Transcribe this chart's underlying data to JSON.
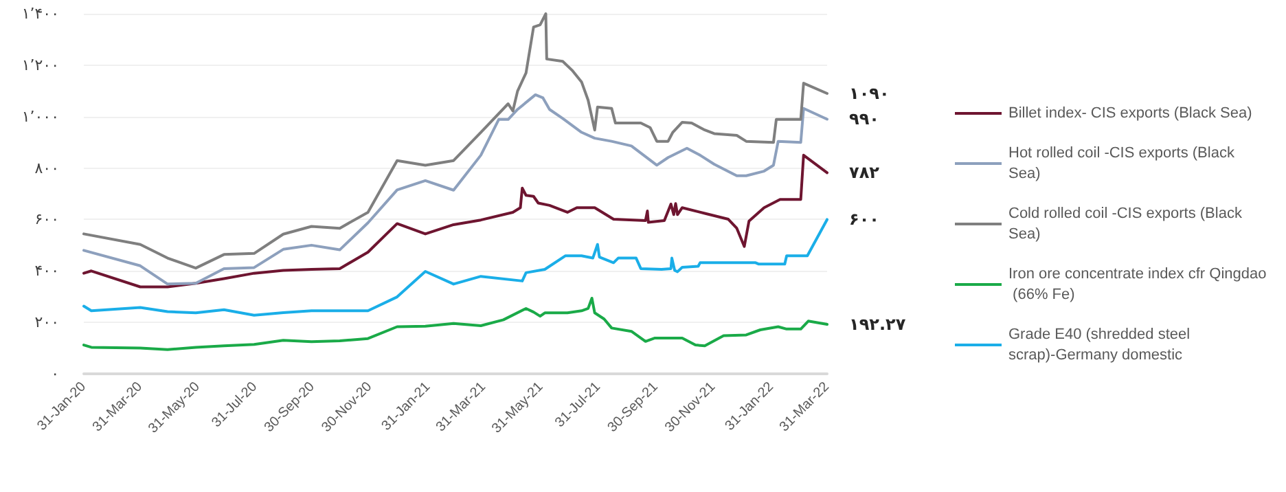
{
  "chart_data": {
    "type": "line",
    "ylim": [
      0,
      1400
    ],
    "yticks": [
      {
        "value": 0,
        "label": "۰"
      },
      {
        "value": 200,
        "label": "۲۰۰"
      },
      {
        "value": 400,
        "label": "۴۰۰"
      },
      {
        "value": 600,
        "label": "۶۰۰"
      },
      {
        "value": 800,
        "label": "۸۰۰"
      },
      {
        "value": 1000,
        "label": "۱٬۰۰۰"
      },
      {
        "value": 1200,
        "label": "۱٬۲۰۰"
      },
      {
        "value": 1400,
        "label": "۱٬۴۰۰"
      }
    ],
    "xlim": [
      "2020-01-31",
      "2022-03-31"
    ],
    "xticks": [
      {
        "value": "2020-01-31",
        "label": "31-Jan-20"
      },
      {
        "value": "2020-03-31",
        "label": "31-Mar-20"
      },
      {
        "value": "2020-05-31",
        "label": "31-May-20"
      },
      {
        "value": "2020-07-31",
        "label": "31-Jul-20"
      },
      {
        "value": "2020-09-30",
        "label": "30-Sep-20"
      },
      {
        "value": "2020-11-30",
        "label": "30-Nov-20"
      },
      {
        "value": "2021-01-31",
        "label": "31-Jan-21"
      },
      {
        "value": "2021-03-31",
        "label": "31-Mar-21"
      },
      {
        "value": "2021-05-31",
        "label": "31-May-21"
      },
      {
        "value": "2021-07-31",
        "label": "31-Jul-21"
      },
      {
        "value": "2021-09-30",
        "label": "30-Sep-21"
      },
      {
        "value": "2021-11-30",
        "label": "30-Nov-21"
      },
      {
        "value": "2022-01-31",
        "label": "31-Jan-22"
      },
      {
        "value": "2022-03-31",
        "label": "31-Mar-22"
      }
    ],
    "grid": "y",
    "legend": "right",
    "marker": "none",
    "line_style": "solid",
    "annotations": [
      {
        "text": "۱۰۹۰",
        "x": "2022-03-31",
        "y": 1090
      },
      {
        "text": "۹۹۰",
        "x": "2022-03-31",
        "y": 990
      },
      {
        "text": "۷۸۲",
        "x": "2022-03-31",
        "y": 782
      },
      {
        "text": "۶۰۰",
        "x": "2022-03-31",
        "y": 600
      },
      {
        "text": "۱۹۲.۲۷",
        "x": "2022-03-31",
        "y": 192.27
      }
    ],
    "series": [
      {
        "name": "Billet index- CIS exports (Black Sea)",
        "color": "#6e1530",
        "x": [
          "2020-01-31",
          "2020-02-08",
          "2020-03-31",
          "2020-04-29",
          "2020-05-29",
          "2020-06-28",
          "2020-07-30",
          "2020-08-30",
          "2020-09-29",
          "2020-10-29",
          "2020-11-28",
          "2020-12-29",
          "2021-01-28",
          "2021-02-27",
          "2021-03-28",
          "2021-05-01",
          "2021-05-09",
          "2021-05-11",
          "2021-05-15",
          "2021-05-23",
          "2021-05-28",
          "2021-06-09",
          "2021-06-28",
          "2021-07-08",
          "2021-07-27",
          "2021-08-16",
          "2021-09-19",
          "2021-09-21",
          "2021-09-22",
          "2021-10-09",
          "2021-10-16",
          "2021-10-19",
          "2021-10-21",
          "2021-10-23",
          "2021-10-28",
          "2021-11-21",
          "2021-12-16",
          "2021-12-25",
          "2022-01-02",
          "2022-01-07",
          "2022-01-23",
          "2022-02-09",
          "2022-03-03",
          "2022-03-06",
          "2022-03-31"
        ],
        "values": [
          391,
          400,
          338,
          338,
          352,
          370,
          391,
          402,
          406,
          409,
          473,
          584,
          544,
          580,
          598,
          628,
          646,
          722,
          694,
          690,
          664,
          655,
          628,
          646,
          646,
          601,
          596,
          633,
          589,
          596,
          660,
          619,
          662,
          619,
          646,
          624,
          601,
          566,
          495,
          594,
          646,
          678,
          678,
          850,
          782
        ]
      },
      {
        "name": "Hot rolled coil -CIS exports (Black Sea)",
        "color": "#8da0bd",
        "x": [
          "2020-01-31",
          "2020-03-31",
          "2020-04-29",
          "2020-05-29",
          "2020-06-28",
          "2020-07-30",
          "2020-08-30",
          "2020-09-29",
          "2020-10-29",
          "2020-11-28",
          "2020-12-29",
          "2021-01-28",
          "2021-02-27",
          "2021-03-28",
          "2021-04-16",
          "2021-04-26",
          "2021-05-06",
          "2021-05-25",
          "2021-06-02",
          "2021-06-09",
          "2021-06-23",
          "2021-07-13",
          "2021-07-27",
          "2021-08-14",
          "2021-09-04",
          "2021-10-01",
          "2021-10-13",
          "2021-11-02",
          "2021-11-16",
          "2021-12-01",
          "2021-12-25",
          "2022-01-04",
          "2022-01-23",
          "2022-02-02",
          "2022-02-07",
          "2022-03-03",
          "2022-03-06",
          "2022-03-31"
        ],
        "values": [
          480,
          420,
          349,
          352,
          409,
          413,
          484,
          500,
          482,
          587,
          715,
          751,
          714,
          850,
          989,
          989,
          1028,
          1085,
          1073,
          1028,
          993,
          939,
          916,
          904,
          886,
          811,
          841,
          877,
          850,
          815,
          770,
          770,
          788,
          811,
          904,
          900,
          1032,
          990
        ]
      },
      {
        "name": "Cold rolled coil -CIS exports (Black Sea)",
        "color": "#7f7f7f",
        "x": [
          "2020-01-31",
          "2020-03-31",
          "2020-04-29",
          "2020-05-29",
          "2020-06-28",
          "2020-07-30",
          "2020-08-30",
          "2020-09-29",
          "2020-10-29",
          "2020-11-28",
          "2020-12-29",
          "2021-01-28",
          "2021-02-27",
          "2021-03-28",
          "2021-04-26",
          "2021-05-01",
          "2021-05-06",
          "2021-05-15",
          "2021-05-23",
          "2021-05-30",
          "2021-06-05",
          "2021-06-06",
          "2021-06-23",
          "2021-07-03",
          "2021-07-13",
          "2021-07-20",
          "2021-07-27",
          "2021-07-30",
          "2021-08-14",
          "2021-08-18",
          "2021-09-14",
          "2021-09-24",
          "2021-10-01",
          "2021-10-13",
          "2021-10-18",
          "2021-10-28",
          "2021-11-07",
          "2021-11-21",
          "2021-12-01",
          "2021-12-25",
          "2022-01-04",
          "2022-02-02",
          "2022-02-05",
          "2022-03-03",
          "2022-03-06",
          "2022-03-31"
        ],
        "values": [
          544,
          503,
          450,
          411,
          464,
          468,
          543,
          573,
          566,
          628,
          829,
          811,
          829,
          939,
          1050,
          1022,
          1099,
          1170,
          1348,
          1357,
          1400,
          1224,
          1215,
          1180,
          1135,
          1064,
          948,
          1037,
          1032,
          975,
          975,
          957,
          904,
          904,
          939,
          978,
          975,
          948,
          934,
          927,
          904,
          900,
          989,
          989,
          1130,
          1090
        ]
      },
      {
        "name": "Iron ore concentrate index cfr Qingdao (66% Fe)",
        "color": "#1aaa48",
        "x": [
          "2020-01-31",
          "2020-02-08",
          "2020-03-31",
          "2020-04-29",
          "2020-05-29",
          "2020-06-28",
          "2020-07-30",
          "2020-08-30",
          "2020-09-29",
          "2020-10-29",
          "2020-11-28",
          "2020-12-29",
          "2021-01-28",
          "2021-02-27",
          "2021-03-28",
          "2021-04-21",
          "2021-05-15",
          "2021-05-23",
          "2021-05-30",
          "2021-06-04",
          "2021-06-28",
          "2021-07-13",
          "2021-07-20",
          "2021-07-24",
          "2021-07-27",
          "2021-08-06",
          "2021-08-14",
          "2021-09-04",
          "2021-09-19",
          "2021-09-29",
          "2021-10-13",
          "2021-10-28",
          "2021-11-11",
          "2021-11-21",
          "2021-12-11",
          "2022-01-04",
          "2022-01-19",
          "2022-02-07",
          "2022-02-16",
          "2022-03-03",
          "2022-03-11",
          "2022-03-31"
        ],
        "values": [
          112,
          103,
          100,
          94,
          103,
          109,
          114,
          130,
          125,
          128,
          137,
          183,
          185,
          196,
          187,
          210,
          254,
          240,
          224,
          237,
          237,
          245,
          254,
          294,
          237,
          213,
          178,
          165,
          126,
          139,
          139,
          139,
          112,
          109,
          148,
          151,
          171,
          183,
          174,
          174,
          205,
          192.27
        ]
      },
      {
        "name": "Grade E40 (shredded steel scrap)-Germany domestic",
        "color": "#1aaee8",
        "x": [
          "2020-01-31",
          "2020-02-08",
          "2020-03-31",
          "2020-04-29",
          "2020-05-29",
          "2020-06-28",
          "2020-07-30",
          "2020-08-30",
          "2020-09-29",
          "2020-10-29",
          "2020-11-28",
          "2020-12-29",
          "2021-01-28",
          "2021-02-27",
          "2021-03-28",
          "2021-05-11",
          "2021-05-15",
          "2021-06-04",
          "2021-06-26",
          "2021-07-13",
          "2021-07-25",
          "2021-07-30",
          "2021-08-01",
          "2021-08-16",
          "2021-08-21",
          "2021-09-09",
          "2021-09-14",
          "2021-10-06",
          "2021-10-16",
          "2021-10-17",
          "2021-10-20",
          "2021-10-23",
          "2021-10-28",
          "2021-11-14",
          "2021-11-16",
          "2022-01-14",
          "2022-01-17",
          "2022-02-14",
          "2022-02-16",
          "2022-03-10",
          "2022-03-31"
        ],
        "values": [
          263,
          245,
          258,
          242,
          237,
          249,
          228,
          238,
          245,
          245,
          245,
          299,
          398,
          349,
          379,
          361,
          393,
          406,
          459,
          459,
          450,
          503,
          454,
          432,
          450,
          450,
          409,
          406,
          409,
          450,
          402,
          397,
          414,
          418,
          432,
          432,
          427,
          427,
          459,
          459,
          600
        ]
      }
    ]
  }
}
